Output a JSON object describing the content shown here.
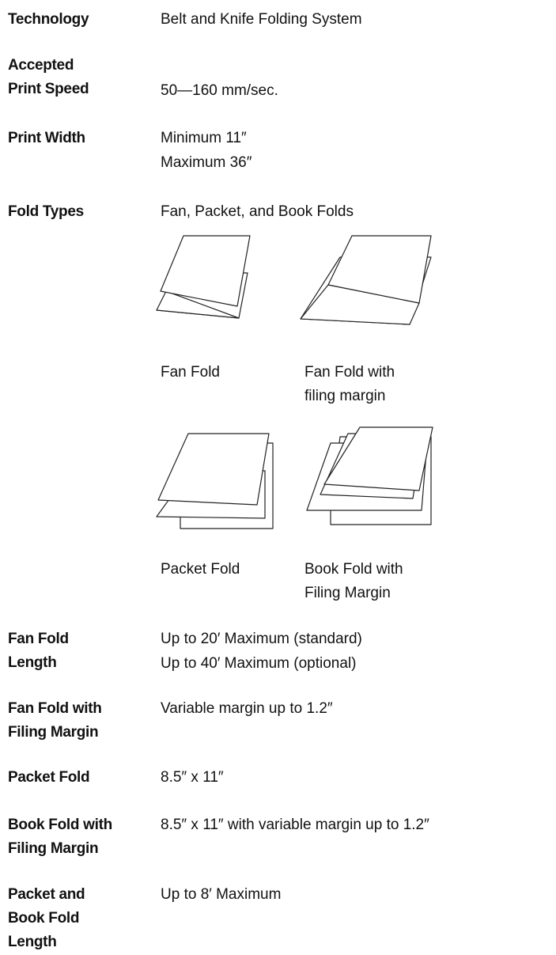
{
  "specs": [
    {
      "label": [
        "Technology"
      ],
      "value": [
        "Belt and Knife Folding System"
      ]
    },
    {
      "label": [
        "Accepted",
        "Print  Speed"
      ],
      "value": [
        "50—160 mm/sec."
      ]
    },
    {
      "label": [
        "Print Width"
      ],
      "value": [
        "Minimum 11″",
        "Maximum 36″"
      ]
    },
    {
      "label": [
        "Fold Types"
      ],
      "value": [
        "Fan, Packet, and Book Folds"
      ]
    },
    {
      "label": [
        "Fan Fold",
        "Length"
      ],
      "value": [
        "Up to 20′ Maximum (standard)",
        "Up to 40′ Maximum (optional)"
      ]
    },
    {
      "label": [
        "Fan Fold with",
        "Filing Margin"
      ],
      "value": [
        "Variable margin up to 1.2″"
      ]
    },
    {
      "label": [
        "Packet Fold"
      ],
      "value": [
        "8.5″ x 11″"
      ]
    },
    {
      "label": [
        "Book Fold with",
        "Filing Margin"
      ],
      "value": [
        "8.5″ x 11″ with variable margin up to 1.2″"
      ]
    },
    {
      "label": [
        "Packet and",
        "Book Fold",
        "Length"
      ],
      "value": [
        "Up to  8′ Maximum"
      ]
    }
  ],
  "figures": [
    {
      "caption": [
        "Fan Fold"
      ]
    },
    {
      "caption": [
        "Fan Fold with",
        "filing margin"
      ]
    },
    {
      "caption": [
        "Packet Fold"
      ]
    },
    {
      "caption": [
        "Book Fold with",
        "Filing Margin"
      ]
    }
  ]
}
